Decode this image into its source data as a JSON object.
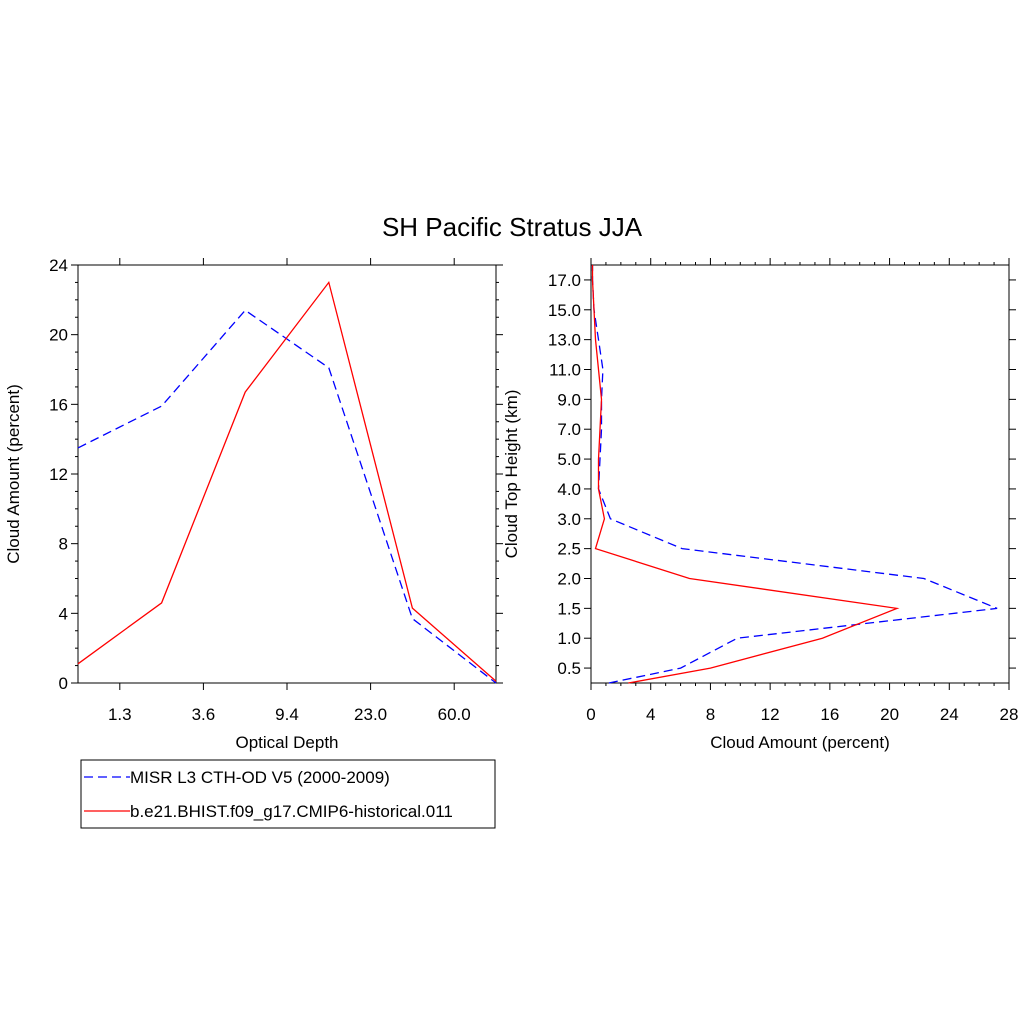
{
  "title": "SH Pacific Stratus JJA",
  "colors": {
    "misr": "#0000ff",
    "model": "#ff0000",
    "axis": "#000000"
  },
  "chart_data": [
    {
      "type": "line",
      "xlabel": "Optical Depth",
      "ylabel": "Cloud Amount (percent)",
      "xlim": [
        0,
        5
      ],
      "ylim": [
        0,
        24
      ],
      "yticks": [
        0,
        4,
        8,
        12,
        16,
        20,
        24
      ],
      "xtick_labels": [
        "1.3",
        "3.6",
        "9.4",
        "23.0",
        "60.0"
      ],
      "xtick_positions": [
        0.5,
        1.5,
        2.5,
        3.5,
        4.5
      ],
      "x": [
        0,
        1,
        2,
        3,
        4,
        5
      ],
      "series": [
        {
          "name": "MISR L3 CTH-OD V5 (2000-2009)",
          "style": "dashed",
          "values": [
            13.5,
            15.9,
            21.4,
            18.1,
            3.7,
            0.0
          ]
        },
        {
          "name": "b.e21.BHIST.f09_g17.CMIP6-historical.011",
          "style": "solid",
          "values": [
            1.1,
            4.6,
            16.7,
            23.0,
            4.3,
            0.1
          ]
        }
      ]
    },
    {
      "type": "line",
      "xlabel": "Cloud Amount (percent)",
      "ylabel": "Cloud Top Height (km)",
      "xlim": [
        0,
        28
      ],
      "xticks": [
        0,
        4,
        8,
        12,
        16,
        20,
        24,
        28
      ],
      "ylim": [
        0,
        14
      ],
      "ytick_labels": [
        "0.5",
        "1.0",
        "1.5",
        "2.0",
        "2.5",
        "3.0",
        "4.0",
        "5.0",
        "7.0",
        "9.0",
        "11.0",
        "13.0",
        "15.0",
        "17.0"
      ],
      "ytick_positions": [
        0.5,
        1.5,
        2.5,
        3.5,
        4.5,
        5.5,
        6.5,
        7.5,
        8.5,
        9.5,
        10.5,
        11.5,
        12.5,
        13.5
      ],
      "y": [
        0,
        0.5,
        1.5,
        2.5,
        3.5,
        4.5,
        5.5,
        6.5,
        7.5,
        8.5,
        9.5,
        10.5,
        11.5,
        12.5,
        13.5,
        14
      ],
      "series": [
        {
          "name": "MISR L3 CTH-OD V5 (2000-2009)",
          "style": "dashed",
          "values": [
            1.2,
            6.0,
            9.8,
            27.2,
            22.3,
            6.1,
            1.3,
            0.5,
            0.6,
            0.7,
            0.7,
            0.8,
            0.5,
            0.2,
            0.1,
            0.1
          ]
        },
        {
          "name": "b.e21.BHIST.f09_g17.CMIP6-historical.011",
          "style": "solid",
          "values": [
            2.5,
            8.0,
            15.5,
            20.5,
            6.6,
            0.3,
            0.9,
            0.5,
            0.5,
            0.6,
            0.7,
            0.5,
            0.3,
            0.2,
            0.1,
            0.1
          ]
        }
      ]
    }
  ],
  "legend": [
    {
      "label": "MISR L3 CTH-OD V5 (2000-2009)",
      "style": "dashed",
      "color": "#0000ff"
    },
    {
      "label": "b.e21.BHIST.f09_g17.CMIP6-historical.011",
      "style": "solid",
      "color": "#ff0000"
    }
  ]
}
